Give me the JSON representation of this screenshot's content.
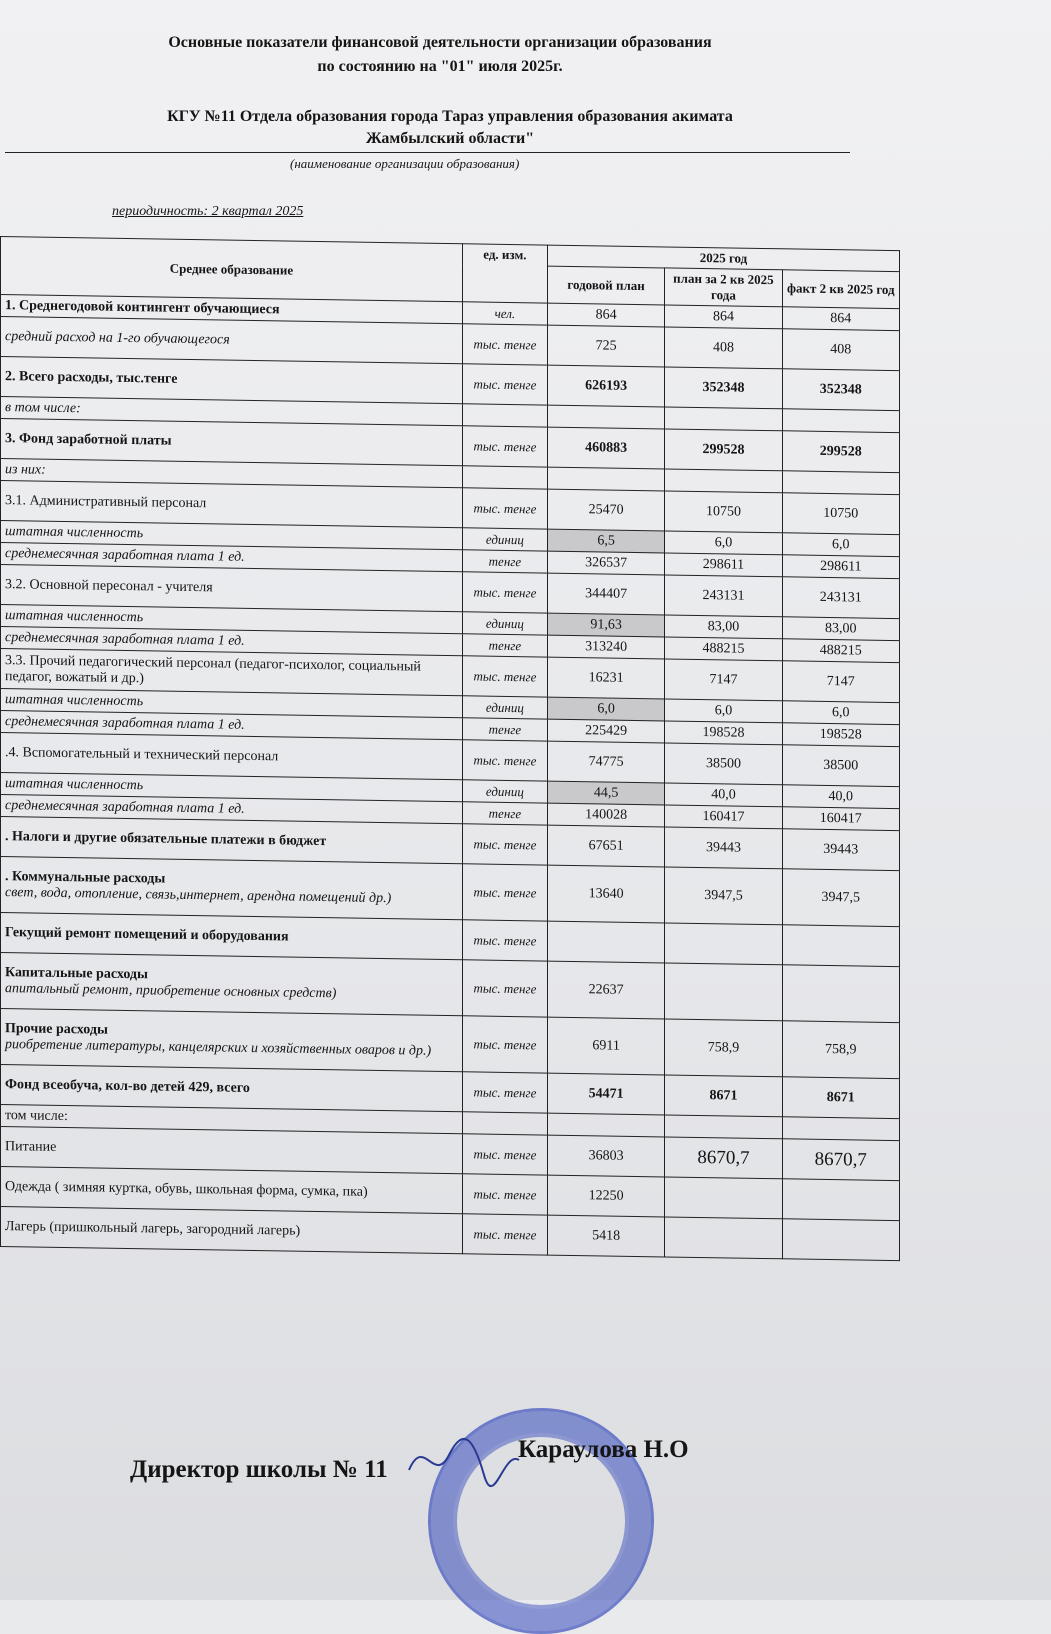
{
  "header": {
    "title_line1": "Основные показатели финансовой деятельности организации образования",
    "title_line2": "по состоянию на \"01\" июля  2025г.",
    "org_line1": "КГУ №11 Отдела образования города Тараз управления образования акимата",
    "org_line2": "Жамбылский области\"",
    "org_caption": "(наименование организации образования)",
    "periodicity": "периодичность: 2 квартал 2025"
  },
  "table": {
    "col_name": "Среднее образование",
    "col_unit": "ед. изм.",
    "col_year": "2025 год",
    "col_plan": "годовой план",
    "col_q2plan": "план за 2 кв 2025 года",
    "col_fact": "факт 2 кв 2025 год",
    "rows": [
      {
        "label": "1. Среднегодовой контингент обучающиеся",
        "unit": "чел.",
        "plan": "864",
        "q2": "864",
        "fact": "864",
        "style": "bold"
      },
      {
        "label": "средний расход на 1-го обучающегося",
        "unit": "тыс. тенге",
        "plan": "725",
        "q2": "408",
        "fact": "408",
        "style": "ital"
      },
      {
        "label": "2. Всего расходы, тыс.тенге",
        "unit": "тыс. тенге",
        "plan": "626193",
        "q2": "352348",
        "fact": "352348",
        "style": "bold",
        "boldnum": true
      },
      {
        "label": "в том числе:",
        "unit": "",
        "plan": "",
        "q2": "",
        "fact": "",
        "style": "ital"
      },
      {
        "label": "3. Фонд заработной платы",
        "unit": "тыс. тенге",
        "plan": "460883",
        "q2": "299528",
        "fact": "299528",
        "style": "bold",
        "boldnum": true
      },
      {
        "label": "из них:",
        "unit": "",
        "plan": "",
        "q2": "",
        "fact": "",
        "style": "ital"
      },
      {
        "label": "3.1. Административный персонал",
        "unit": "тыс. тенге",
        "plan": "25470",
        "q2": "10750",
        "fact": "10750",
        "style": ""
      },
      {
        "label": "штатная численность",
        "unit": "единиц",
        "plan": "6,5",
        "q2": "6,0",
        "fact": "6,0",
        "style": "ital",
        "shade": true
      },
      {
        "label": "среднемесячная заработная плата 1 ед.",
        "unit": "тенге",
        "plan": "326537",
        "q2": "298611",
        "fact": "298611",
        "style": "ital"
      },
      {
        "label": "3.2. Основной пересонал - учителя",
        "unit": "тыс. тенге",
        "plan": "344407",
        "q2": "243131",
        "fact": "243131",
        "style": ""
      },
      {
        "label": "штатная численность",
        "unit": "единиц",
        "plan": "91,63",
        "q2": "83,00",
        "fact": "83,00",
        "style": "ital",
        "shade": true
      },
      {
        "label": "среднемесячная заработная плата 1 ед.",
        "unit": "тенге",
        "plan": "313240",
        "q2": "488215",
        "fact": "488215",
        "style": "ital"
      },
      {
        "label": "3.3. Прочий педагогический персонал (педагог-психолог, социальный педагог, вожатый и др.)",
        "unit": "тыс. тенге",
        "plan": "16231",
        "q2": "7147",
        "fact": "7147",
        "style": ""
      },
      {
        "label": "штатная численность",
        "unit": "единиц",
        "plan": "6,0",
        "q2": "6,0",
        "fact": "6,0",
        "style": "ital",
        "shade": true
      },
      {
        "label": "среднемесячная заработная плата 1 ед.",
        "unit": "тенге",
        "plan": "225429",
        "q2": "198528",
        "fact": "198528",
        "style": "ital"
      },
      {
        "label": ".4. Вспомогательный и технический персонал",
        "unit": "тыс. тенге",
        "plan": "74775",
        "q2": "38500",
        "fact": "38500",
        "style": ""
      },
      {
        "label": "штатная численность",
        "unit": "единиц",
        "plan": "44,5",
        "q2": "40,0",
        "fact": "40,0",
        "style": "ital",
        "shade": true
      },
      {
        "label": "среднемесячная заработная плата 1 ед.",
        "unit": "тенге",
        "plan": "140028",
        "q2": "160417",
        "fact": "160417",
        "style": "ital"
      },
      {
        "label": ". Налоги и другие обязательные платежи в бюджет",
        "unit": "тыс. тенге",
        "plan": "67651",
        "q2": "39443",
        "fact": "39443",
        "style": "bold"
      },
      {
        "label": ". Коммунальные расходы",
        "sub": "свет, вода, отопление, связь,интернет, арендна помещений др.)",
        "unit": "тыс. тенге",
        "plan": "13640",
        "q2": "3947,5",
        "fact": "3947,5",
        "style": "bold"
      },
      {
        "label": "Гекущий ремонт помещений и оборудования",
        "unit": "тыс. тенге",
        "plan": "",
        "q2": "",
        "fact": "",
        "style": "bold"
      },
      {
        "label": "Капитальные расходы",
        "sub": "апитальный ремонт, приобретение основных средств)",
        "unit": "тыс. тенге",
        "plan": "22637",
        "q2": "",
        "fact": "",
        "style": "bold"
      },
      {
        "label": "Прочие расходы",
        "sub": "риобретение литературы, канцелярских и хозяйственных оваров и др.)",
        "unit": "тыс. тенге",
        "plan": "6911",
        "q2": "758,9",
        "fact": "758,9",
        "style": "bold"
      },
      {
        "label": "Фонд всеобуча, кол-во детей 429, всего",
        "unit": "тыс. тенге",
        "plan": "54471",
        "q2": "8671",
        "fact": "8671",
        "style": "bold",
        "boldnum": true
      },
      {
        "label": "том числе:",
        "unit": "",
        "plan": "",
        "q2": "",
        "fact": "",
        "style": ""
      },
      {
        "label": "Питание",
        "unit": "тыс. тенге",
        "plan": "36803",
        "q2": "8670,7",
        "fact": "8670,7",
        "style": "",
        "bignum": true
      },
      {
        "label": "Одежда ( зимняя куртка, обувь, школьная форма, сумка, пка)",
        "unit": "тыс. тенге",
        "plan": "12250",
        "q2": "",
        "fact": "",
        "style": ""
      },
      {
        "label": "Лагерь (пришкольный лагерь, загородний лагерь)",
        "unit": "тыс. тенге",
        "plan": "5418",
        "q2": "",
        "fact": "",
        "style": ""
      }
    ]
  },
  "footer": {
    "position": "Директор школы № 11",
    "name": "Караулова Н.О",
    "stamp_color": "#3c50be"
  }
}
